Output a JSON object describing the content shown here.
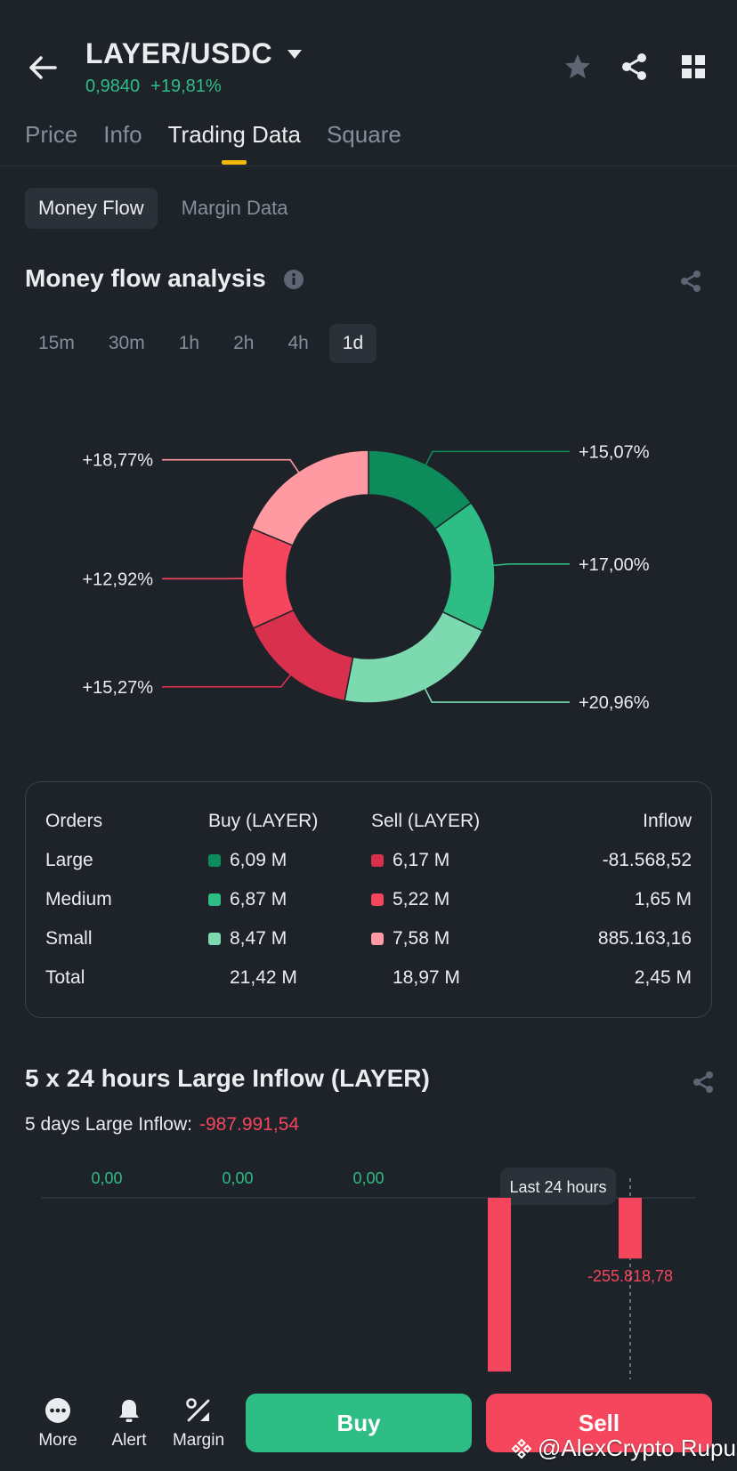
{
  "header": {
    "pair": "LAYER/USDC",
    "price": "0,9840",
    "change": "+19,81%",
    "icons": [
      "back-arrow-icon",
      "caret-down-icon",
      "star-icon",
      "share-icon",
      "grid-icon"
    ]
  },
  "tabs": [
    "Price",
    "Info",
    "Trading Data",
    "Square"
  ],
  "active_tab": "Trading Data",
  "subtabs": [
    "Money Flow",
    "Margin Data"
  ],
  "active_subtab": "Money Flow",
  "money_flow": {
    "title": "Money flow analysis",
    "periods": [
      "15m",
      "30m",
      "1h",
      "2h",
      "4h",
      "1d"
    ],
    "active_period": "1d"
  },
  "colors": {
    "buy_large": "#0e8b5a",
    "buy_medium": "#2ebd85",
    "buy_small": "#7dd9b0",
    "sell_large": "#d9304e",
    "sell_medium": "#f6465d",
    "sell_small": "#ff9aa3",
    "accent": "#f0b90b"
  },
  "chart_data": [
    {
      "type": "pie",
      "labels": [
        "+15,07%",
        "+17,00%",
        "+20,96%",
        "+15,27%",
        "+12,92%",
        "+18,77%"
      ],
      "values": [
        15.07,
        17.0,
        20.96,
        15.27,
        12.92,
        18.77
      ]
    },
    {
      "type": "bar",
      "values": [
        0,
        0,
        0,
        -732172.76,
        -255818.78
      ],
      "labels": [
        "0,00",
        "0,00",
        "0,00",
        "",
        "-255.818,78"
      ],
      "annotation": "Last 24 hours"
    }
  ],
  "orders_table": {
    "headers": [
      "Orders",
      "Buy (LAYER)",
      "Sell (LAYER)",
      "Inflow"
    ],
    "rows": [
      {
        "order": "Large",
        "buy": "6,09 M",
        "sell": "6,17 M",
        "inflow": "-81.568,52"
      },
      {
        "order": "Medium",
        "buy": "6,87 M",
        "sell": "5,22 M",
        "inflow": "1,65 M"
      },
      {
        "order": "Small",
        "buy": "8,47 M",
        "sell": "7,58 M",
        "inflow": "885.163,16"
      },
      {
        "order": "Total",
        "buy": "21,42 M",
        "sell": "18,97 M",
        "inflow": "2,45 M"
      }
    ]
  },
  "large_inflow": {
    "title": "5 x 24 hours Large Inflow (LAYER)",
    "summary_label": "5 days Large Inflow:",
    "summary_value": "-987.991,54"
  },
  "bottom_nav": {
    "items": [
      {
        "label": "More",
        "icon": "more-icon"
      },
      {
        "label": "Alert",
        "icon": "bell-icon"
      },
      {
        "label": "Margin",
        "icon": "margin-icon"
      }
    ],
    "buy_label": "Buy",
    "sell_label": "Sell"
  },
  "watermark": "@AlexCrypto Rupu"
}
